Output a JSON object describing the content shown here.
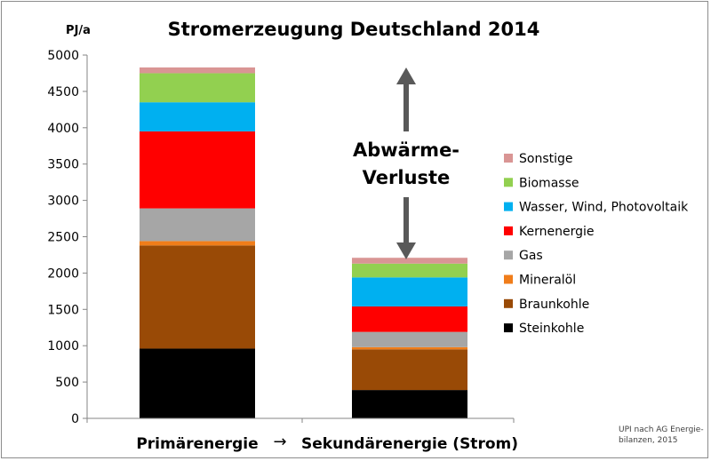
{
  "chart_data": {
    "type": "bar",
    "stacked": true,
    "title": "Stromerzeugung Deutschland 2014",
    "ylabel": "PJ/a",
    "xlabel": "",
    "ylim": [
      0,
      5000
    ],
    "yticks": [
      0,
      500,
      1000,
      1500,
      2000,
      2500,
      3000,
      3500,
      4000,
      4500,
      5000
    ],
    "grid": false,
    "legend_position": "right",
    "categories": [
      "Primärenergie",
      "Sekundärenergie (Strom)"
    ],
    "category_arrow": "→",
    "series": [
      {
        "name": "Steinkohle",
        "color": "#000000",
        "values": [
          960,
          390
        ]
      },
      {
        "name": "Braunkohle",
        "color": "#994a06",
        "values": [
          1420,
          560
        ]
      },
      {
        "name": "Mineralöl",
        "color": "#f07d1a",
        "values": [
          60,
          30
        ]
      },
      {
        "name": "Gas",
        "color": "#a6a6a6",
        "values": [
          450,
          210
        ]
      },
      {
        "name": "Kernenergie",
        "color": "#ff0000",
        "values": [
          1060,
          350
        ]
      },
      {
        "name": "Wasser, Wind, Photovoltaik",
        "color": "#00b0f0",
        "values": [
          400,
          400
        ]
      },
      {
        "name": "Biomasse",
        "color": "#92d050",
        "values": [
          400,
          190
        ]
      },
      {
        "name": "Sonstige",
        "color": "#d99594",
        "values": [
          80,
          80
        ]
      }
    ],
    "annotation": {
      "lines": [
        "Abwärme-",
        "Verluste"
      ],
      "arrow_color": "#595959"
    },
    "source": [
      "UPI nach AG Energie-",
      "bilanzen, 2015"
    ]
  }
}
